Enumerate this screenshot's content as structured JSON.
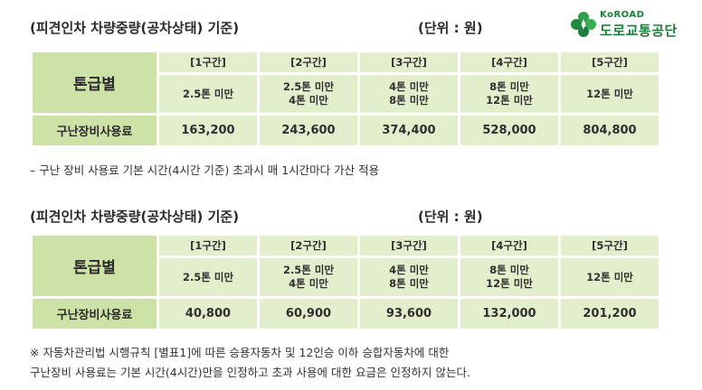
{
  "brand": {
    "logo_en": "KoROAD",
    "logo_ko": "도로교통공단"
  },
  "colors": {
    "header_cell": "#cde2a6",
    "body_cell": "#e3efcc",
    "brand_green": "#1a7f3c"
  },
  "tables": [
    {
      "title": "(피견인차 차량중량(공차상태) 기준)",
      "unit": "(단위 : 원)",
      "corner_label": "톤급별",
      "fee_label": "구난장비사용료",
      "sections": [
        "[1구간]",
        "[2구간]",
        "[3구간]",
        "[4구간]",
        "[5구간]"
      ],
      "weights": [
        [
          "2.5톤 미만"
        ],
        [
          "2.5톤 미만",
          "4톤 미만"
        ],
        [
          "4톤 미만",
          "8톤 미만"
        ],
        [
          "8톤 미만",
          "12톤 미만"
        ],
        [
          "12톤 미만"
        ]
      ],
      "fees": [
        "163,200",
        "243,600",
        "374,400",
        "528,000",
        "804,800"
      ],
      "note": "– 구난 장비 사용료 기본 시간(4시간 기준) 초과시 매 1시간마다 가산 적용"
    },
    {
      "title": "(피견인차 차량중량(공차상태) 기준)",
      "unit": "(단위 : 원)",
      "corner_label": "톤급별",
      "fee_label": "구난장비사용료",
      "sections": [
        "[1구간]",
        "[2구간]",
        "[3구간]",
        "[4구간]",
        "[5구간]"
      ],
      "weights": [
        [
          "2.5톤 미만"
        ],
        [
          "2.5톤 미만",
          "4톤 미만"
        ],
        [
          "4톤 미만",
          "8톤 미만"
        ],
        [
          "8톤 미만",
          "12톤 미만"
        ],
        [
          "12톤 미만"
        ]
      ],
      "fees": [
        "40,800",
        "60,900",
        "93,600",
        "132,000",
        "201,200"
      ],
      "note_lines": [
        "※ 자동차관리법 시행규칙 [별표1]에 따른 승용자동차 및 12인승 이하 승합자동차에 대한",
        "구난장비 사용료는 기본 시간(4시간)만을 인정하고 초과 사용에 대한 요금은 인정하지 않는다."
      ]
    }
  ]
}
